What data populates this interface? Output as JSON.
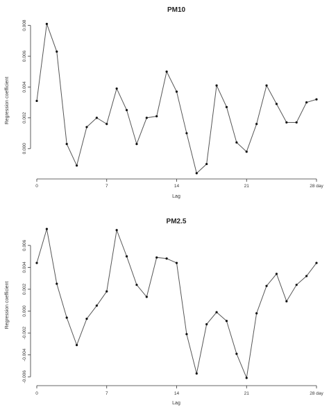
{
  "chart_data": [
    {
      "type": "line",
      "title": "PM10",
      "xlabel": "Lag",
      "ylabel": "Regression coefficient",
      "x": [
        0,
        1,
        2,
        3,
        4,
        5,
        6,
        7,
        8,
        9,
        10,
        11,
        12,
        13,
        14,
        15,
        16,
        17,
        18,
        19,
        20,
        21,
        22,
        23,
        24,
        25,
        26,
        27,
        28
      ],
      "values": [
        0.0031,
        0.0081,
        0.0063,
        0.0003,
        -0.0011,
        0.0014,
        0.002,
        0.0016,
        0.0039,
        0.0025,
        0.0003,
        0.002,
        0.0021,
        0.005,
        0.0037,
        0.001,
        -0.0016,
        -0.001,
        0.0041,
        0.0027,
        0.0004,
        -0.0002,
        0.0016,
        0.0041,
        0.0029,
        0.0017,
        0.0017,
        0.003,
        0.0032
      ],
      "xticks": [
        0,
        7,
        14,
        21,
        28
      ],
      "xtick_labels": [
        "0",
        "7",
        "14",
        "21",
        "28 day"
      ],
      "yticks": [
        0.0,
        0.002,
        0.004,
        0.006,
        0.008
      ],
      "ytick_labels": [
        "0.000",
        "0.002",
        "0.004",
        "0.006",
        "0.008"
      ],
      "xlim": [
        0,
        28
      ],
      "ylim": [
        -0.0017,
        0.0083
      ],
      "grid": false
    },
    {
      "type": "line",
      "title": "PM2.5",
      "xlabel": "Lag",
      "ylabel": "Regression coefficient",
      "x": [
        0,
        1,
        2,
        3,
        4,
        5,
        6,
        7,
        8,
        9,
        10,
        11,
        12,
        13,
        14,
        15,
        16,
        17,
        18,
        19,
        20,
        21,
        22,
        23,
        24,
        25,
        26,
        27,
        28
      ],
      "values": [
        0.0044,
        0.0075,
        0.0025,
        -0.0006,
        -0.0031,
        -0.0007,
        0.0005,
        0.0018,
        0.0074,
        0.005,
        0.0024,
        0.0013,
        0.0049,
        0.0048,
        0.0044,
        -0.0021,
        -0.0057,
        -0.0012,
        -0.0001,
        -0.0009,
        -0.0039,
        -0.0061,
        -0.0002,
        0.0023,
        0.0034,
        0.0009,
        0.0024,
        0.0032,
        0.0044
      ],
      "xticks": [
        0,
        7,
        14,
        21,
        28
      ],
      "xtick_labels": [
        "0",
        "7",
        "14",
        "21",
        "28 day"
      ],
      "yticks": [
        -0.006,
        -0.004,
        -0.002,
        0.0,
        0.002,
        0.004,
        0.006
      ],
      "ytick_labels": [
        "-0.006",
        "-0.004",
        "-0.002",
        "0.000",
        "0.002",
        "0.004",
        "0.006"
      ],
      "xlim": [
        0,
        28
      ],
      "ylim": [
        -0.0063,
        0.0077
      ],
      "grid": false
    }
  ]
}
